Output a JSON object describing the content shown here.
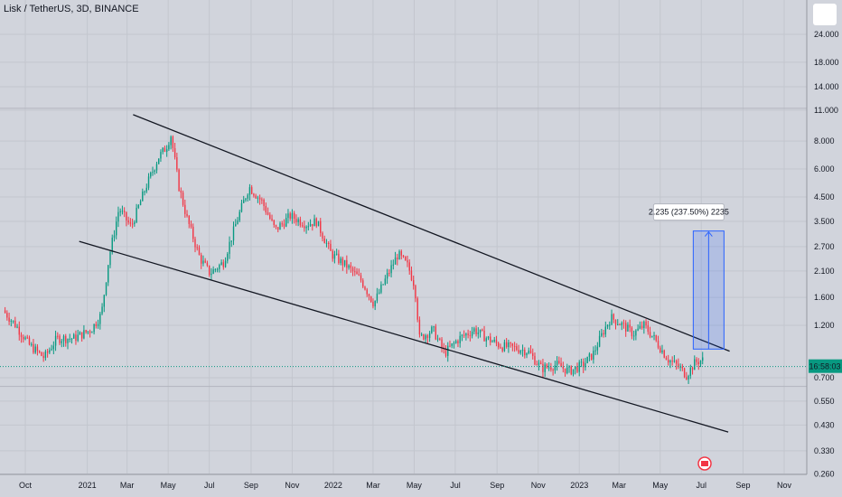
{
  "header": {
    "title": "Lisk / TetherUS, 3D, BINANCE"
  },
  "price_tag": {
    "value": "16:58:03",
    "color": "#089981"
  },
  "measure": {
    "label": "2.235 (237.50%) 2235",
    "color": "#2962ff"
  },
  "colors": {
    "background": "#d1d4dc",
    "up": "#089981",
    "down": "#f23645",
    "line": "#131722"
  },
  "chart_data": {
    "type": "candlestick",
    "title": "Lisk / TetherUS, 3D, BINANCE",
    "y_scale": "log",
    "ylim": [
      0.25,
      30
    ],
    "y_ticks": [
      "24.000",
      "18.000",
      "14.000",
      "11.000",
      "8.000",
      "6.000",
      "4.500",
      "3.500",
      "2.700",
      "2.100",
      "1.600",
      "1.200",
      "0.700",
      "0.550",
      "0.430",
      "0.330",
      "0.260"
    ],
    "y_tick_values": [
      24,
      18,
      14,
      11,
      8,
      6,
      4.5,
      3.5,
      2.7,
      2.1,
      1.6,
      1.2,
      0.7,
      0.55,
      0.43,
      0.33,
      0.26
    ],
    "x_ticks": [
      "Oct",
      "2021",
      "Mar",
      "May",
      "Jul",
      "Sep",
      "Nov",
      "2022",
      "Mar",
      "May",
      "Jul",
      "Sep",
      "Nov",
      "2023",
      "Mar",
      "May",
      "Jul",
      "Sep",
      "Nov"
    ],
    "x_tick_dates": [
      "2020-10-01",
      "2021-01-01",
      "2021-03-01",
      "2021-05-01",
      "2021-07-01",
      "2021-09-01",
      "2021-11-01",
      "2022-01-01",
      "2022-03-01",
      "2022-05-01",
      "2022-07-01",
      "2022-09-01",
      "2022-11-01",
      "2023-01-01",
      "2023-03-01",
      "2023-05-01",
      "2023-07-01",
      "2023-09-01",
      "2023-11-01"
    ],
    "price_keypoints": [
      [
        "2020-09-01",
        1.4
      ],
      [
        "2020-09-20",
        1.2
      ],
      [
        "2020-10-10",
        0.98
      ],
      [
        "2020-11-01",
        0.86
      ],
      [
        "2020-11-20",
        1.05
      ],
      [
        "2020-12-15",
        1.05
      ],
      [
        "2021-01-10",
        1.15
      ],
      [
        "2021-01-25",
        1.35
      ],
      [
        "2021-02-05",
        2.4
      ],
      [
        "2021-02-20",
        4.0
      ],
      [
        "2021-03-10",
        3.3
      ],
      [
        "2021-04-01",
        5.0
      ],
      [
        "2021-04-20",
        6.8
      ],
      [
        "2021-05-01",
        7.5
      ],
      [
        "2021-05-08",
        8.5
      ],
      [
        "2021-05-20",
        5.0
      ],
      [
        "2021-06-01",
        3.6
      ],
      [
        "2021-06-20",
        2.4
      ],
      [
        "2021-07-05",
        2.05
      ],
      [
        "2021-07-25",
        2.3
      ],
      [
        "2021-08-15",
        3.6
      ],
      [
        "2021-09-01",
        5.0
      ],
      [
        "2021-09-20",
        4.3
      ],
      [
        "2021-10-10",
        3.2
      ],
      [
        "2021-11-01",
        3.7
      ],
      [
        "2021-11-25",
        3.4
      ],
      [
        "2021-12-10",
        3.5
      ],
      [
        "2022-01-01",
        2.5
      ],
      [
        "2022-01-25",
        2.2
      ],
      [
        "2022-02-15",
        1.9
      ],
      [
        "2022-03-05",
        1.5
      ],
      [
        "2022-03-25",
        2.0
      ],
      [
        "2022-04-10",
        2.5
      ],
      [
        "2022-04-25",
        2.2
      ],
      [
        "2022-05-05",
        1.8
      ],
      [
        "2022-05-12",
        1.05
      ],
      [
        "2022-06-01",
        1.15
      ],
      [
        "2022-06-18",
        0.9
      ],
      [
        "2022-07-10",
        1.05
      ],
      [
        "2022-08-01",
        1.15
      ],
      [
        "2022-08-20",
        1.05
      ],
      [
        "2022-09-10",
        0.97
      ],
      [
        "2022-10-01",
        0.95
      ],
      [
        "2022-10-20",
        0.92
      ],
      [
        "2022-11-09",
        0.77
      ],
      [
        "2022-12-01",
        0.8
      ],
      [
        "2022-12-20",
        0.75
      ],
      [
        "2023-01-10",
        0.8
      ],
      [
        "2023-01-25",
        0.9
      ],
      [
        "2023-02-10",
        1.15
      ],
      [
        "2023-02-20",
        1.3
      ],
      [
        "2023-03-10",
        1.2
      ],
      [
        "2023-03-25",
        1.1
      ],
      [
        "2023-04-10",
        1.2
      ],
      [
        "2023-04-25",
        1.05
      ],
      [
        "2023-05-15",
        0.85
      ],
      [
        "2023-06-01",
        0.78
      ],
      [
        "2023-06-12",
        0.72
      ],
      [
        "2023-06-25",
        0.82
      ],
      [
        "2023-07-05",
        0.84
      ]
    ],
    "trendlines": [
      {
        "name": "upper",
        "from": [
          "2021-03-10",
          10.5
        ],
        "to": [
          "2023-08-12",
          0.92
        ]
      },
      {
        "name": "lower",
        "from": [
          "2020-12-20",
          2.85
        ],
        "to": [
          "2023-08-10",
          0.4
        ]
      }
    ],
    "measure_range": {
      "x": "2023-08-01",
      "from": 0.94,
      "to": 3.17
    },
    "current_price_line": 0.785,
    "grid": true
  }
}
